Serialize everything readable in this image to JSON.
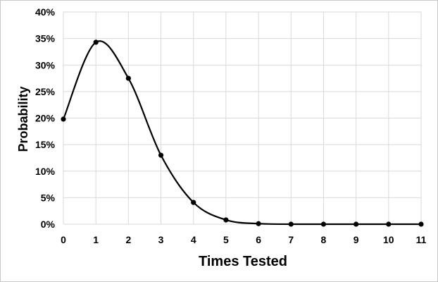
{
  "chart_data": {
    "type": "line",
    "title": "",
    "xlabel": "Times Tested",
    "ylabel": "Probability",
    "x": [
      0,
      1,
      2,
      3,
      4,
      5,
      6,
      7,
      8,
      9,
      10,
      11
    ],
    "series": [
      {
        "values": [
          19.8,
          34.3,
          27.5,
          13.0,
          4.1,
          0.8,
          0.1,
          0.0,
          0.0,
          0.0,
          0.0,
          0.0
        ]
      }
    ],
    "xlim": [
      0,
      11
    ],
    "ylim": [
      0,
      40
    ],
    "yticks": [
      0,
      5,
      10,
      15,
      20,
      25,
      30,
      35,
      40
    ],
    "ytick_labels": [
      "0%",
      "5%",
      "10%",
      "15%",
      "20%",
      "25%",
      "30%",
      "35%",
      "40%"
    ],
    "xtick_labels": [
      "0",
      "1",
      "2",
      "3",
      "4",
      "5",
      "6",
      "7",
      "8",
      "9",
      "10",
      "11"
    ],
    "grid": true,
    "legend": "none",
    "colors": {
      "line": "#000000",
      "grid": "#d9d9d9",
      "border": "#c8c8c8"
    }
  }
}
